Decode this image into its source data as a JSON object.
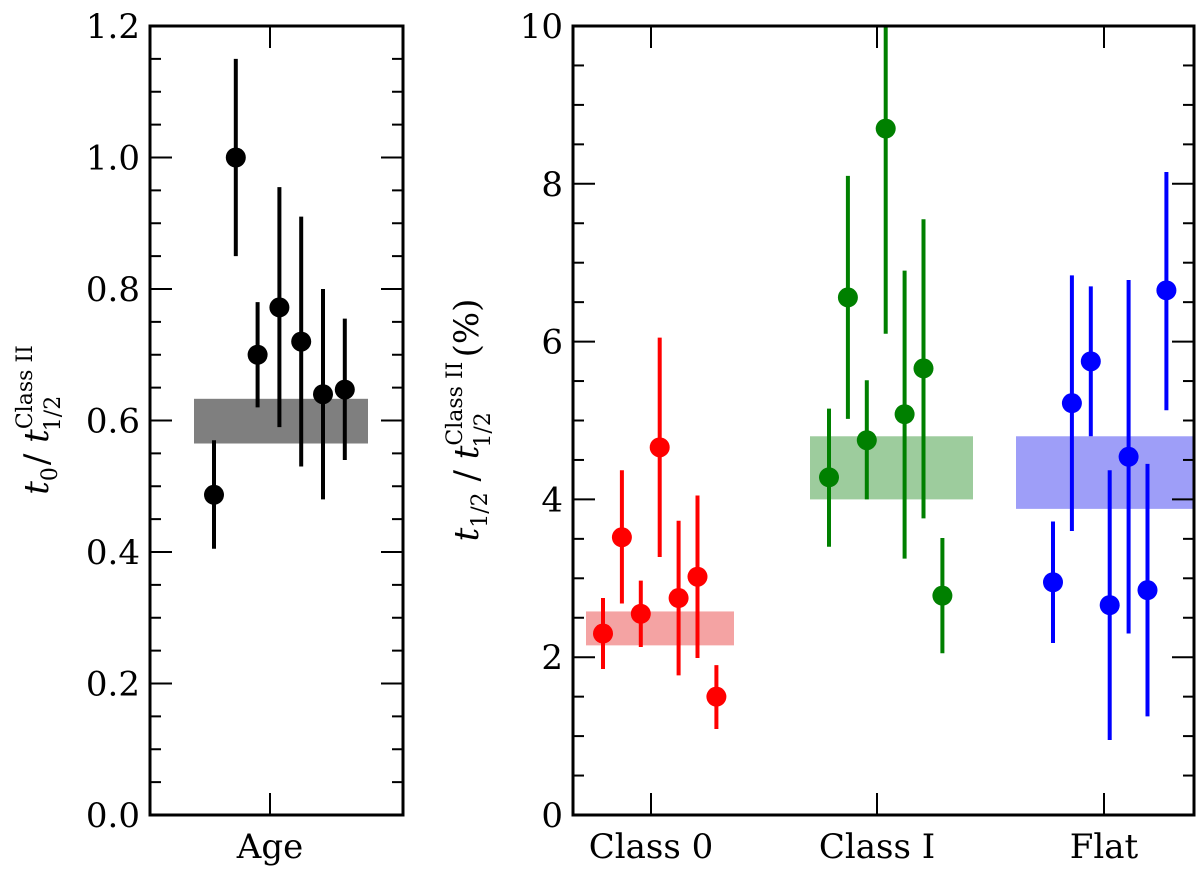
{
  "chart_data": [
    {
      "type": "scatter",
      "xlabel": "Age",
      "ylabel": {
        "a": "t",
        "a_sub": "0",
        "b": "/ ",
        "c": "t",
        "c_sup": "Class II",
        "c_sub": "1/2"
      },
      "ylim": [
        0,
        1.2
      ],
      "yticks": [
        "0.0",
        "0.2",
        "0.4",
        "0.6",
        "0.8",
        "1.0",
        "1.2"
      ],
      "color": "#000000",
      "band": {
        "low": 0.565,
        "high": 0.633,
        "color": "#7f7f7f"
      },
      "points": [
        {
          "y": 0.487,
          "lo": 0.405,
          "hi": 0.57
        },
        {
          "y": 1.0,
          "lo": 0.85,
          "hi": 1.15
        },
        {
          "y": 0.7,
          "lo": 0.62,
          "hi": 0.78
        },
        {
          "y": 0.772,
          "lo": 0.59,
          "hi": 0.955
        },
        {
          "y": 0.72,
          "lo": 0.53,
          "hi": 0.91
        },
        {
          "y": 0.64,
          "lo": 0.48,
          "hi": 0.8
        },
        {
          "y": 0.647,
          "lo": 0.54,
          "hi": 0.755
        }
      ]
    },
    {
      "type": "scatter",
      "categories": [
        "Class 0",
        "Class I",
        "Flat"
      ],
      "ylabel": {
        "a": "t",
        "a_sub": "1/2",
        "b": " / ",
        "c": "t",
        "c_sup": "Class II",
        "c_sub": "1/2",
        "d": " (%)"
      },
      "ylim": [
        0,
        10
      ],
      "yticks": [
        "0",
        "2",
        "4",
        "6",
        "8",
        "10"
      ],
      "series": [
        {
          "category": "Class 0",
          "color": "#ff0000",
          "band": {
            "low": 2.15,
            "high": 2.58,
            "color": "#f4a3a3"
          },
          "points": [
            {
              "y": 2.3,
              "lo": 1.85,
              "hi": 2.75
            },
            {
              "y": 3.52,
              "lo": 2.68,
              "hi": 4.37
            },
            {
              "y": 2.55,
              "lo": 2.13,
              "hi": 2.97
            },
            {
              "y": 4.66,
              "lo": 3.27,
              "hi": 6.05
            },
            {
              "y": 2.75,
              "lo": 1.77,
              "hi": 3.73
            },
            {
              "y": 3.02,
              "lo": 1.99,
              "hi": 4.05
            },
            {
              "y": 1.5,
              "lo": 1.09,
              "hi": 1.9
            }
          ]
        },
        {
          "category": "Class I",
          "color": "#008000",
          "band": {
            "low": 4.0,
            "high": 4.8,
            "color": "#9dcc9d"
          },
          "points": [
            {
              "y": 4.28,
              "lo": 3.4,
              "hi": 5.15
            },
            {
              "y": 6.56,
              "lo": 5.02,
              "hi": 8.1
            },
            {
              "y": 4.75,
              "lo": 4.0,
              "hi": 5.51
            },
            {
              "y": 8.7,
              "lo": 6.1,
              "hi": 10.0
            },
            {
              "y": 5.08,
              "lo": 3.25,
              "hi": 6.9
            },
            {
              "y": 5.66,
              "lo": 3.76,
              "hi": 7.55
            },
            {
              "y": 2.78,
              "lo": 2.05,
              "hi": 3.51
            }
          ]
        },
        {
          "category": "Flat",
          "color": "#0000ff",
          "band": {
            "low": 3.88,
            "high": 4.8,
            "color": "#9e9ef8"
          },
          "points": [
            {
              "y": 2.95,
              "lo": 2.18,
              "hi": 3.72
            },
            {
              "y": 5.22,
              "lo": 3.6,
              "hi": 6.84
            },
            {
              "y": 5.75,
              "lo": 4.8,
              "hi": 6.7
            },
            {
              "y": 2.66,
              "lo": 0.95,
              "hi": 4.37
            },
            {
              "y": 4.54,
              "lo": 2.3,
              "hi": 6.78
            },
            {
              "y": 2.85,
              "lo": 1.25,
              "hi": 4.45
            },
            {
              "y": 6.65,
              "lo": 5.13,
              "hi": 8.15
            }
          ]
        }
      ]
    }
  ]
}
